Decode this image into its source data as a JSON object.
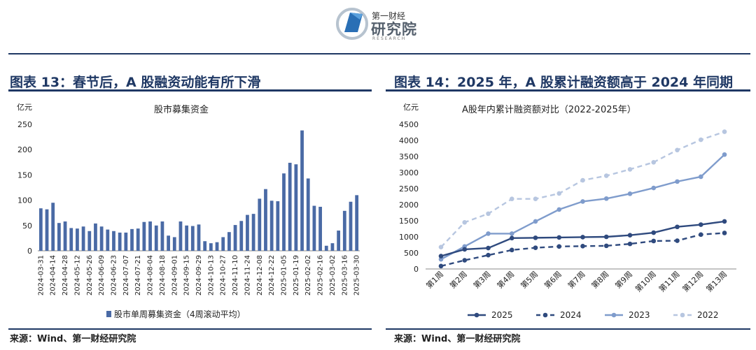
{
  "header": {
    "logo_top": "第一财经",
    "logo_main": "研究院",
    "logo_sub": "RESEARCH"
  },
  "left": {
    "heading": "图表 13：春节后，A 股融资动能有所下滑",
    "source": "来源：Wind、第一财经研究院"
  },
  "right": {
    "heading": "图表 14：2025 年，A 股累计融资额高于 2024 年同期",
    "source": "来源：Wind、第一财经研究院"
  },
  "colors": {
    "bar": "#4a6aa5",
    "s2025": "#2f4a7e",
    "s2024": "#2f4a7e",
    "s2023": "#7f9ccc",
    "s2022": "#b7c6e0",
    "heading": "#1f3864"
  },
  "chart_data": [
    {
      "type": "bar",
      "title": "股市募集资金",
      "ylabel": "亿元",
      "ylim": [
        0,
        250
      ],
      "yticks": [
        0,
        50,
        100,
        150,
        200,
        250
      ],
      "legend": "股市单周募集资金（4周滚动平均）",
      "legend_position": "bottom",
      "grid": false,
      "categories": [
        "2024-03-31",
        "2024-04-07",
        "2024-04-14",
        "2024-04-21",
        "2024-04-28",
        "2024-05-05",
        "2024-05-12",
        "2024-05-19",
        "2024-05-26",
        "2024-06-02",
        "2024-06-09",
        "2024-06-16",
        "2024-06-23",
        "2024-06-30",
        "2024-07-07",
        "2024-07-14",
        "2024-07-21",
        "2024-07-28",
        "2024-08-04",
        "2024-08-11",
        "2024-08-18",
        "2024-08-25",
        "2024-09-01",
        "2024-09-08",
        "2024-09-15",
        "2024-09-22",
        "2024-09-29",
        "2024-10-06",
        "2024-10-13",
        "2024-10-20",
        "2024-10-27",
        "2024-11-03",
        "2024-11-10",
        "2024-11-17",
        "2024-11-24",
        "2024-12-01",
        "2024-12-08",
        "2024-12-15",
        "2024-12-22",
        "2024-12-29",
        "2025-01-05",
        "2025-01-12",
        "2025-01-19",
        "2025-01-26",
        "2025-02-02",
        "2025-02-09",
        "2025-02-16",
        "2025-02-23",
        "2025-03-02",
        "2025-03-09",
        "2025-03-16",
        "2025-03-23",
        "2025-03-30"
      ],
      "tick_labels": [
        "2024-03-31",
        "2024-04-14",
        "2024-04-28",
        "2024-05-12",
        "2024-05-26",
        "2024-06-09",
        "2024-06-23",
        "2024-07-07",
        "2024-07-21",
        "2024-08-04",
        "2024-08-18",
        "2024-09-01",
        "2024-09-15",
        "2024-09-29",
        "2024-10-13",
        "2024-10-27",
        "2024-11-10",
        "2024-11-24",
        "2024-12-08",
        "2024-12-22",
        "2025-01-05",
        "2025-01-19",
        "2025-02-02",
        "2025-02-16",
        "2025-03-02",
        "2025-03-16",
        "2025-03-30"
      ],
      "values": [
        84,
        82,
        95,
        55,
        58,
        45,
        44,
        48,
        39,
        54,
        48,
        42,
        39,
        36,
        36,
        43,
        44,
        57,
        58,
        50,
        58,
        30,
        27,
        58,
        50,
        49,
        52,
        19,
        15,
        17,
        27,
        37,
        51,
        59,
        71,
        73,
        103,
        122,
        99,
        98,
        153,
        174,
        171,
        238,
        143,
        89,
        87,
        10,
        15,
        40,
        79,
        97,
        110
      ]
    },
    {
      "type": "line",
      "title": "A股年内累计融资额对比（2022-2025年）",
      "ylabel": "亿元",
      "ylim": [
        0,
        4500
      ],
      "yticks": [
        0,
        500,
        1000,
        1500,
        2000,
        2500,
        3000,
        3500,
        4000,
        4500
      ],
      "grid": false,
      "legend_position": "bottom",
      "categories": [
        "第1周",
        "第2周",
        "第3周",
        "第4周",
        "第5周",
        "第6周",
        "第7周",
        "第8周",
        "第9周",
        "第10周",
        "第11周",
        "第12周",
        "第13周"
      ],
      "series": [
        {
          "name": "2025",
          "dash": false,
          "values": [
            400,
            610,
            650,
            960,
            970,
            980,
            990,
            1000,
            1050,
            1130,
            1310,
            1380,
            1480
          ]
        },
        {
          "name": "2024",
          "dash": true,
          "values": [
            90,
            270,
            430,
            590,
            660,
            700,
            710,
            720,
            780,
            870,
            880,
            1070,
            1120
          ]
        },
        {
          "name": "2023",
          "dash": false,
          "values": [
            300,
            700,
            1100,
            1100,
            1480,
            1850,
            2100,
            2190,
            2340,
            2520,
            2720,
            2870,
            3560
          ]
        },
        {
          "name": "2022",
          "dash": true,
          "values": [
            680,
            1450,
            1720,
            2180,
            2180,
            2350,
            2760,
            2900,
            3100,
            3320,
            3700,
            4020,
            4270
          ]
        }
      ]
    }
  ]
}
